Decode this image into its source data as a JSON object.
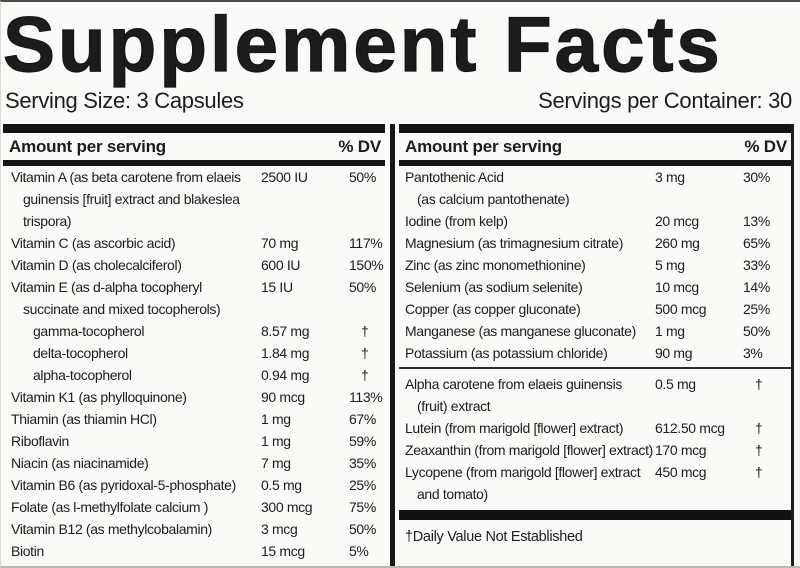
{
  "title": "Supplement Facts",
  "serving_size": "Serving Size: 3 Capsules",
  "servings_per_container": "Servings per Container: 30",
  "colors": {
    "ink": "#1c1c1c",
    "background": "#fafaf8"
  },
  "left_table": {
    "header": {
      "amount": "Amount per serving",
      "dv": "% DV"
    },
    "rows": [
      {
        "name_lines": [
          "Vitamin A (as beta carotene from elaeis",
          "guinensis [fruit] extract and blakeslea",
          "trispora)"
        ],
        "amount": "2500 IU",
        "dv": "50%"
      },
      {
        "name_lines": [
          "Vitamin C (as ascorbic acid)"
        ],
        "amount": "70 mg",
        "dv": "117%"
      },
      {
        "name_lines": [
          "Vitamin D (as cholecalciferol)"
        ],
        "amount": "600 IU",
        "dv": "150%"
      },
      {
        "name_lines": [
          "Vitamin E (as d-alpha tocopheryl",
          "succinate and mixed tocopherols)"
        ],
        "amount": "15 IU",
        "dv": "50%"
      },
      {
        "name_lines": [
          "gamma-tocopherol"
        ],
        "amount": "8.57 mg",
        "dv": "†",
        "sub": true
      },
      {
        "name_lines": [
          "delta-tocopherol"
        ],
        "amount": "1.84 mg",
        "dv": "†",
        "sub": true
      },
      {
        "name_lines": [
          "alpha-tocopherol"
        ],
        "amount": "0.94 mg",
        "dv": "†",
        "sub": true
      },
      {
        "name_lines": [
          "Vitamin K1 (as phylloquinone)"
        ],
        "amount": "90 mcg",
        "dv": "113%"
      },
      {
        "name_lines": [
          "Thiamin (as thiamin HCl)"
        ],
        "amount": "1 mg",
        "dv": "67%"
      },
      {
        "name_lines": [
          "Riboflavin"
        ],
        "amount": "1 mg",
        "dv": "59%"
      },
      {
        "name_lines": [
          "Niacin (as niacinamide)"
        ],
        "amount": "7 mg",
        "dv": "35%"
      },
      {
        "name_lines": [
          "Vitamin B6 (as pyridoxal-5-phosphate)"
        ],
        "amount": "0.5 mg",
        "dv": "25%"
      },
      {
        "name_lines": [
          "Folate (as l-methylfolate calcium )"
        ],
        "amount": "300 mcg",
        "dv": "75%"
      },
      {
        "name_lines": [
          "Vitamin B12 (as methylcobalamin)"
        ],
        "amount": "3 mcg",
        "dv": "50%"
      },
      {
        "name_lines": [
          "Biotin"
        ],
        "amount": "15 mcg",
        "dv": "5%"
      }
    ]
  },
  "right_table": {
    "header": {
      "amount": "Amount per serving",
      "dv": "% DV"
    },
    "rows": [
      {
        "name_lines": [
          "Pantothenic Acid",
          "(as calcium pantothenate)"
        ],
        "amount": "3 mg",
        "dv": "30%"
      },
      {
        "name_lines": [
          "Iodine (from kelp)"
        ],
        "amount": "20 mcg",
        "dv": "13%"
      },
      {
        "name_lines": [
          "Magnesium (as trimagnesium citrate)"
        ],
        "amount": "260 mg",
        "dv": "65%"
      },
      {
        "name_lines": [
          "Zinc (as zinc monomethionine)"
        ],
        "amount": "5 mg",
        "dv": "33%"
      },
      {
        "name_lines": [
          "Selenium (as sodium selenite)"
        ],
        "amount": "10 mcg",
        "dv": "14%"
      },
      {
        "name_lines": [
          "Copper (as copper gluconate)"
        ],
        "amount": "500 mcg",
        "dv": "25%"
      },
      {
        "name_lines": [
          "Manganese (as manganese gluconate)"
        ],
        "amount": "1 mg",
        "dv": "50%"
      },
      {
        "name_lines": [
          "Potassium (as potassium chloride)"
        ],
        "amount": "90 mg",
        "dv": "3%",
        "divider_after": "thin"
      },
      {
        "name_lines": [
          "Alpha carotene from elaeis guinensis",
          "(fruit) extract"
        ],
        "amount": "0.5 mg",
        "dv": "†"
      },
      {
        "name_lines": [
          "Lutein (from marigold [flower] extract)"
        ],
        "amount": "612.50 mcg",
        "dv": "†"
      },
      {
        "name_lines": [
          "Zeaxanthin (from marigold [flower] extract)"
        ],
        "amount": "170 mcg",
        "dv": "†"
      },
      {
        "name_lines": [
          "Lycopene (from marigold [flower] extract",
          "and tomato)"
        ],
        "amount": "450 mcg",
        "dv": "†",
        "divider_after": "thick"
      }
    ],
    "footnote": "†Daily Value Not Established"
  }
}
